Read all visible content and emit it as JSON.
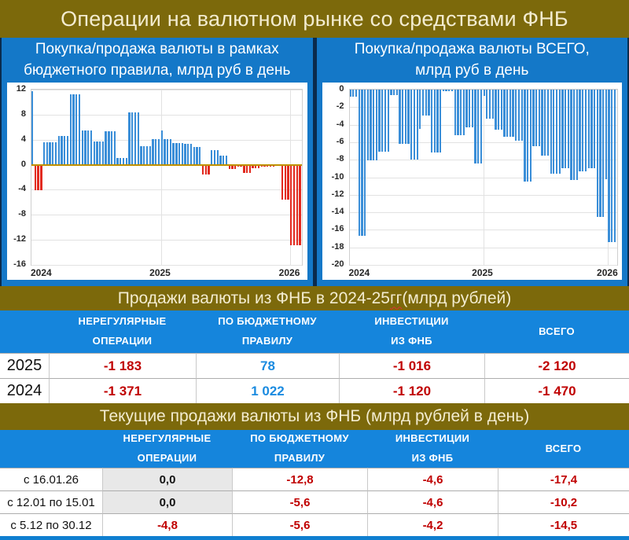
{
  "header": {
    "title": "Операции на валютном рынке со средствами ФНБ"
  },
  "colors": {
    "olive_background": "#7c690b",
    "cream_text": "#f3ecd0",
    "chart_header_blue": "#1478c8",
    "table_header_blue": "#1585dc",
    "navy_border": "#0a2b4d",
    "bottom_strip_blue": "#0f7fd0",
    "grey_cell": "#e8e8e8",
    "value": {
      "red": "#c00000",
      "blue": "#1b8be0",
      "black": "#141414"
    }
  },
  "chart_data": [
    {
      "type": "bar",
      "title": "Покупка/продажа валюты в рамках бюджетного правила, млрд руб в день",
      "panel_title_lines": [
        "Покупка/продажа валюты в рамках",
        "бюджетного правила, млрд руб в день"
      ],
      "xlabel": "",
      "ylabel": "млрд руб в день",
      "ylim": [
        -16,
        12
      ],
      "yticks": [
        12,
        8,
        4,
        0,
        -4,
        -8,
        -12,
        -16
      ],
      "xtick_labels": [
        "2024",
        "2025",
        "2026"
      ],
      "year_start_bar_index": [
        0,
        44,
        88
      ],
      "grid": true,
      "legend": "none",
      "colors": {
        "positive": "#3a8ed8",
        "negative": "#e22a1f"
      },
      "groups_value_count": [
        [
          11.7,
          1
        ],
        [
          -4.1,
          3
        ],
        [
          3.6,
          5
        ],
        [
          4.6,
          4
        ],
        [
          11.2,
          4
        ],
        [
          5.5,
          4
        ],
        [
          3.7,
          4
        ],
        [
          5.3,
          4
        ],
        [
          1.1,
          4
        ],
        [
          8.3,
          4
        ],
        [
          3.0,
          4
        ],
        [
          4.1,
          3
        ],
        [
          5.5,
          1
        ],
        [
          4.1,
          3
        ],
        [
          3.5,
          4
        ],
        [
          3.3,
          3
        ],
        [
          2.8,
          3
        ],
        [
          -1.5,
          3
        ],
        [
          2.3,
          3
        ],
        [
          1.5,
          3
        ],
        [
          -0.7,
          3
        ],
        [
          -0.3,
          2
        ],
        [
          -1.3,
          3
        ],
        [
          -0.6,
          3
        ],
        [
          -0.25,
          5
        ],
        [
          -0.1,
          2
        ],
        [
          -5.6,
          3
        ],
        [
          -12.8,
          4
        ]
      ]
    },
    {
      "type": "bar",
      "title": "Покупка/продажа валюты ВСЕГО, млрд руб в день",
      "panel_title_lines": [
        "Покупка/продажа валюты ВСЕГО,",
        "млрд руб в день"
      ],
      "xlabel": "",
      "ylabel": "млрд руб в день",
      "ylim": [
        -20,
        0
      ],
      "yticks": [
        0,
        -2,
        -4,
        -6,
        -8,
        -10,
        -12,
        -14,
        -16,
        -18,
        -20
      ],
      "xtick_labels": [
        "2024",
        "2025",
        "2026"
      ],
      "year_start_bar_index": [
        0,
        46,
        89
      ],
      "grid": true,
      "legend": "none",
      "colors": {
        "positive": "#3a8ed8",
        "negative": "#3a8ed8"
      },
      "groups_value_count": [
        [
          -0.8,
          3
        ],
        [
          -16.7,
          3
        ],
        [
          -8.1,
          4
        ],
        [
          -7.1,
          4
        ],
        [
          -0.6,
          3
        ],
        [
          -6.2,
          4
        ],
        [
          -8.0,
          3
        ],
        [
          -4.5,
          1
        ],
        [
          -3.0,
          3
        ],
        [
          -7.2,
          4
        ],
        [
          -0.15,
          4
        ],
        [
          -5.2,
          4
        ],
        [
          -4.3,
          3
        ],
        [
          -8.4,
          3
        ],
        [
          -0.7,
          1
        ],
        [
          -3.3,
          3
        ],
        [
          -4.6,
          3
        ],
        [
          -5.4,
          4
        ],
        [
          -5.8,
          3
        ],
        [
          -10.5,
          3
        ],
        [
          -6.5,
          3
        ],
        [
          -7.5,
          3
        ],
        [
          -9.6,
          4
        ],
        [
          -9.0,
          3
        ],
        [
          -10.3,
          3
        ],
        [
          -9.3,
          3
        ],
        [
          -9.0,
          3
        ],
        [
          -14.5,
          3
        ],
        [
          -10.2,
          1
        ],
        [
          -17.4,
          3
        ]
      ]
    }
  ],
  "sales_table": {
    "section_title_pre": "Продажи валюты из ФНБ в 2024-25 ",
    "section_title_wavy": "гг",
    "section_title_post": " (млрд рублей)",
    "columns": [
      [
        "НЕРЕГУЛЯРНЫЕ",
        "ОПЕРАЦИИ"
      ],
      [
        "ПО БЮДЖЕТНОМУ",
        "ПРАВИЛУ"
      ],
      [
        "ИНВЕСТИЦИИ",
        "ИЗ ФНБ"
      ],
      [
        "ВСЕГО"
      ]
    ],
    "rows": [
      {
        "label": "2025",
        "values": [
          {
            "text": "-1 183",
            "color": "red"
          },
          {
            "text": "78",
            "color": "blue"
          },
          {
            "text": "-1 016",
            "color": "red"
          },
          {
            "text": "-2 120",
            "color": "red"
          }
        ]
      },
      {
        "label": "2024",
        "values": [
          {
            "text": "-1 371",
            "color": "red"
          },
          {
            "text": "1 022",
            "color": "blue"
          },
          {
            "text": "-1 120",
            "color": "red"
          },
          {
            "text": "-1 470",
            "color": "red"
          }
        ]
      }
    ]
  },
  "current_table": {
    "section_title": "Текущие продажи валюты из ФНБ (млрд рублей в день)",
    "columns": [
      [
        "НЕРЕГУЛЯРНЫЕ",
        "ОПЕРАЦИИ"
      ],
      [
        "ПО БЮДЖЕТНОМУ",
        "ПРАВИЛУ"
      ],
      [
        "ИНВЕСТИЦИИ",
        "ИЗ ФНБ"
      ],
      [
        "ВСЕГО"
      ]
    ],
    "rows": [
      {
        "label": "с 16.01.26",
        "values": [
          {
            "text": "0,0",
            "color": "black",
            "bg": "grey"
          },
          {
            "text": "-12,8",
            "color": "red"
          },
          {
            "text": "-4,6",
            "color": "red"
          },
          {
            "text": "-17,4",
            "color": "red"
          }
        ]
      },
      {
        "label": "с 12.01 по 15.01",
        "values": [
          {
            "text": "0,0",
            "color": "black",
            "bg": "grey"
          },
          {
            "text": "-5,6",
            "color": "red"
          },
          {
            "text": "-4,6",
            "color": "red"
          },
          {
            "text": "-10,2",
            "color": "red"
          }
        ]
      },
      {
        "label": "с 5.12 по 30.12",
        "values": [
          {
            "text": "-4,8",
            "color": "red"
          },
          {
            "text": "-5,6",
            "color": "red"
          },
          {
            "text": "-4,2",
            "color": "red"
          },
          {
            "text": "-14,5",
            "color": "red"
          }
        ]
      }
    ]
  }
}
